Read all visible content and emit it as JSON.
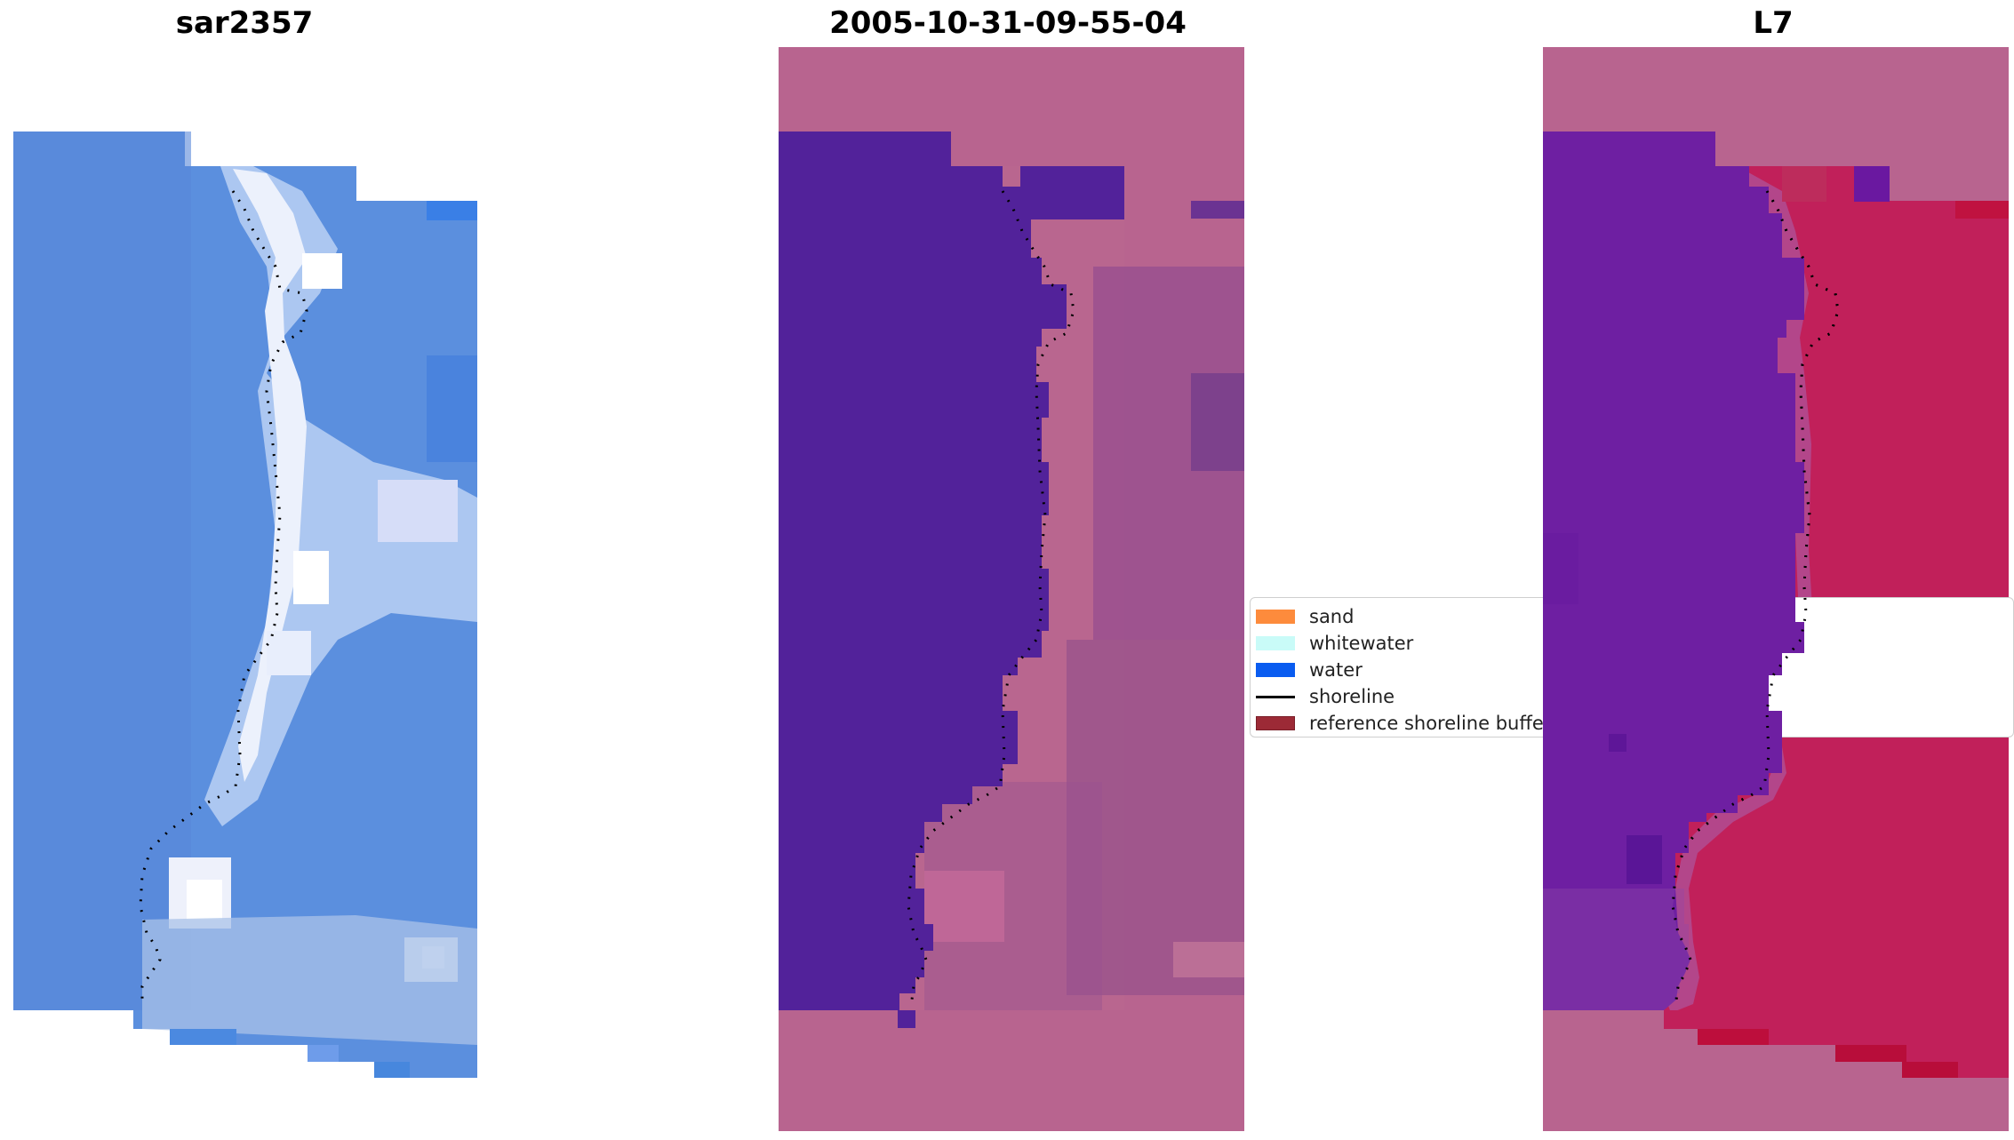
{
  "panels": [
    {
      "title": "sar2357"
    },
    {
      "title": "2005-10-31-09-55-04"
    },
    {
      "title": "L7"
    }
  ],
  "legend": {
    "items": [
      {
        "label": "sand",
        "color": "#fd8b3c",
        "kind": "patch"
      },
      {
        "label": "whitewater",
        "color": "#c9fbf8",
        "kind": "patch"
      },
      {
        "label": "water",
        "color": "#0a5cf0",
        "kind": "patch"
      },
      {
        "label": "shoreline",
        "color": "#000000",
        "kind": "line"
      },
      {
        "label": "reference shoreline buffer",
        "color": "#9c2a36",
        "kind": "patch"
      }
    ]
  },
  "colors": {
    "background": "#ffffff",
    "rgb_water": "#5b8fde",
    "rgb_whitewater": "#f2f6ff",
    "classified_water": "#52229a",
    "classified_land": "#b9668f",
    "classified_padding": "#b8648f",
    "ndwi_low": "#6e1fa2",
    "ndwi_high": "#c11447"
  }
}
